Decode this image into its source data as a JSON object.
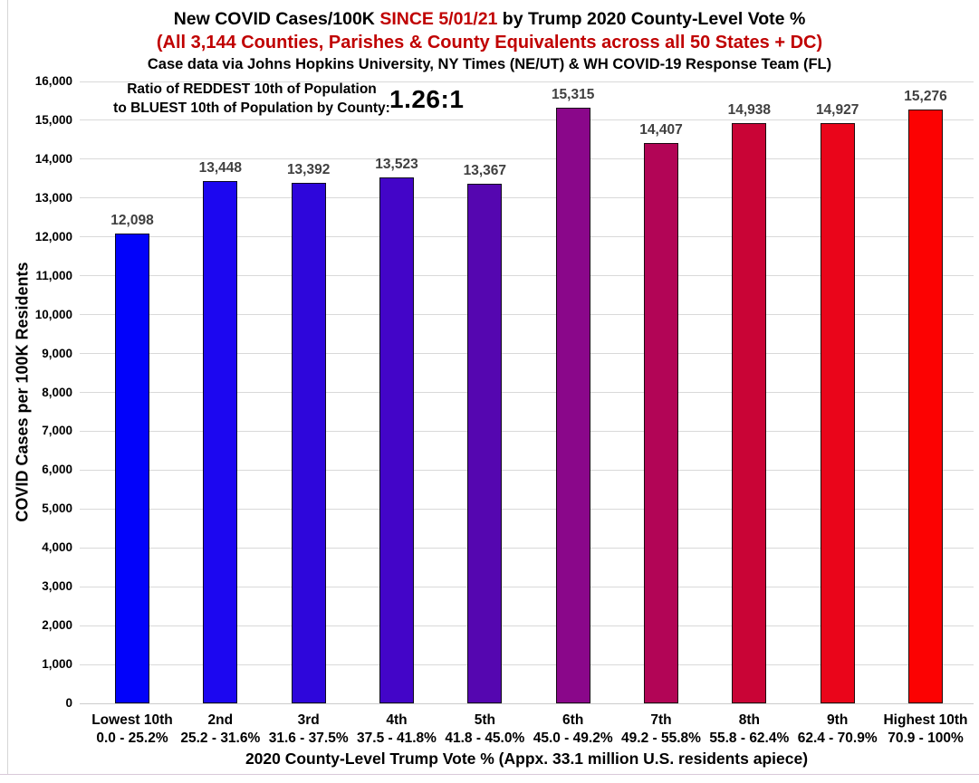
{
  "title": {
    "line1_prefix": "New COVID Cases/100K ",
    "line1_highlight": "SINCE 5/01/21",
    "line1_suffix": " by Trump 2020 County-Level Vote %",
    "line2": "(All 3,144 Counties, Parishes & County Equivalents across all 50 States + DC)",
    "line3": "Case data via Johns Hopkins University, NY Times (NE/UT) & WH COVID-19 Response Team (FL)"
  },
  "annotation": {
    "line1": "Ratio of REDDEST 10th of Population",
    "line2": "to BLUEST 10th of Population by County:",
    "ratio": "1.26:1"
  },
  "chart_data": {
    "type": "bar",
    "title": "New COVID Cases/100K SINCE 5/01/21 by Trump 2020 County-Level Vote %",
    "subtitle": "(All 3,144 Counties, Parishes & County Equivalents across all 50 States + DC)",
    "source_note": "Case data via Johns Hopkins University, NY Times (NE/UT) & WH COVID-19 Response Team (FL)",
    "xlabel": "2020 County-Level Trump Vote % (Appx. 33.1 million U.S. residents apiece)",
    "ylabel": "COVID Cases per 100K Residents",
    "ylim": [
      0,
      16000
    ],
    "ytick_step": 1000,
    "grid": true,
    "legend": "none",
    "categories": [
      "Lowest 10th",
      "2nd",
      "3rd",
      "4th",
      "5th",
      "6th",
      "7th",
      "8th",
      "9th",
      "Highest 10th"
    ],
    "category_ranges": [
      "0.0 - 25.2%",
      "25.2 - 31.6%",
      "31.6 - 37.5%",
      "37.5 - 41.8%",
      "41.8 - 45.0%",
      "45.0 - 49.2%",
      "49.2 - 55.8%",
      "55.8 - 62.4%",
      "62.4 - 70.9%",
      "70.9 - 100%"
    ],
    "values": [
      12098,
      13448,
      13392,
      13523,
      13367,
      15315,
      14407,
      14938,
      14927,
      15276
    ],
    "value_labels": [
      "12,098",
      "13,448",
      "13,392",
      "13,523",
      "13,367",
      "15,315",
      "14,407",
      "14,938",
      "14,927",
      "15,276"
    ],
    "bar_colors": [
      "#0202fa",
      "#1c07f0",
      "#2e06db",
      "#4305c8",
      "#5506b0",
      "#8a078a",
      "#b20556",
      "#c90436",
      "#ea051a",
      "#fc0202"
    ]
  },
  "colors": {
    "accent_red": "#c00000",
    "value_label_gray": "#404040",
    "gridline": "#d9d9d9"
  }
}
